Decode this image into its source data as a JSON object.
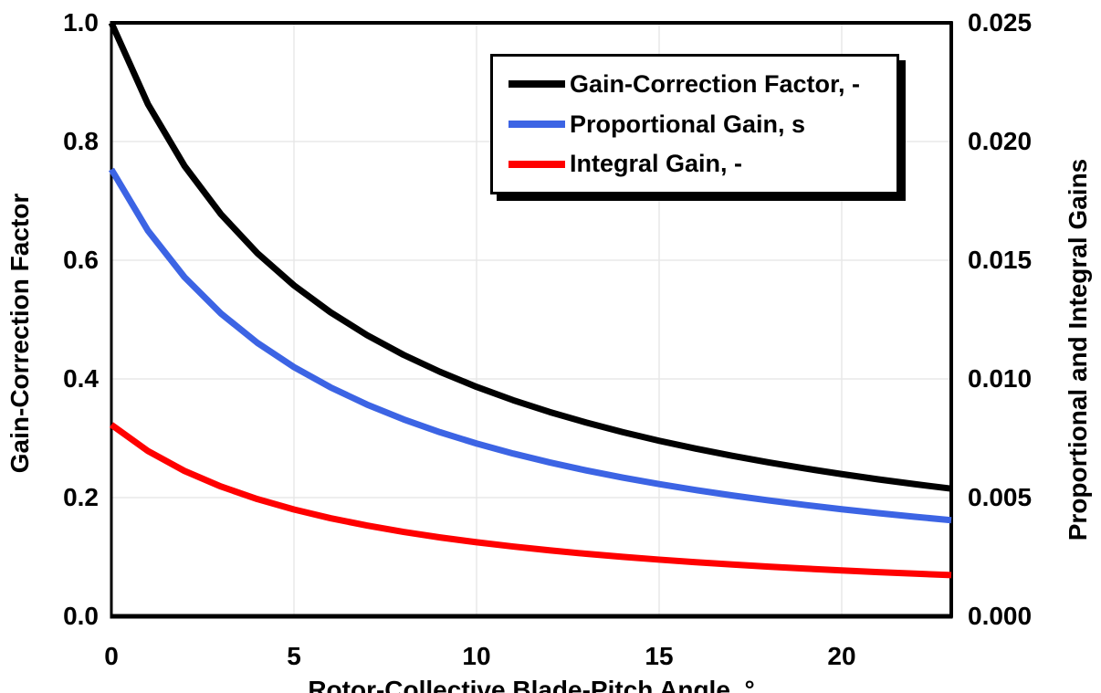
{
  "figure": {
    "xlabel": "Rotor-Collective Blade-Pitch Angle, °",
    "ylabel_left": "Gain-Correction Factor",
    "ylabel_right": "Proportional and Integral Gains"
  },
  "colors": {
    "gain_correction": "#000000",
    "proportional": "#3C64E4",
    "integral": "#FF0000",
    "gridline": "#E8E8E8",
    "frame": "#000000"
  },
  "chart_data": {
    "type": "line",
    "title": "",
    "xlabel": "Rotor-Collective Blade-Pitch Angle, °",
    "ylabel_left": "Gain-Correction Factor",
    "ylabel_right": "Proportional and Integral Gains",
    "xlim": [
      0,
      23
    ],
    "ylim_left": [
      0,
      1.0
    ],
    "ylim_right": [
      0,
      0.025
    ],
    "grid": true,
    "legend_position": "top-center-inside",
    "x": [
      0,
      1,
      2,
      3,
      4,
      5,
      6,
      7,
      8,
      9,
      10,
      11,
      12,
      13,
      14,
      15,
      16,
      17,
      18,
      19,
      20,
      21,
      22,
      23
    ],
    "series": [
      {
        "name": "Gain-Correction Factor, -",
        "color": "#000000",
        "axis": "left",
        "values": [
          1.0,
          0.8631,
          0.7591,
          0.6775,
          0.6117,
          0.5576,
          0.5123,
          0.4738,
          0.4406,
          0.4119,
          0.3866,
          0.3642,
          0.3443,
          0.3265,
          0.3104,
          0.2958,
          0.2826,
          0.2705,
          0.2593,
          0.2491,
          0.2396,
          0.2308,
          0.2227,
          0.2151
        ]
      },
      {
        "name": "Proportional Gain, s",
        "color": "#3C64E4",
        "axis": "right",
        "values": [
          0.018827,
          0.016249,
          0.014291,
          0.012755,
          0.011517,
          0.010498,
          0.009645,
          0.00892,
          0.008296,
          0.007754,
          0.007278,
          0.006858,
          0.006483,
          0.006147,
          0.005844,
          0.00557,
          0.00532,
          0.005092,
          0.004882,
          0.004689,
          0.004511,
          0.004346,
          0.004192,
          0.004049
        ]
      },
      {
        "name": "Integral Gain, -",
        "color": "#FF0000",
        "axis": "right",
        "values": [
          0.008069,
          0.006964,
          0.006125,
          0.005467,
          0.004936,
          0.0045,
          0.004133,
          0.003823,
          0.003555,
          0.003323,
          0.003119,
          0.002939,
          0.002778,
          0.002634,
          0.002504,
          0.002387,
          0.00228,
          0.002182,
          0.002092,
          0.00201,
          0.001933,
          0.001862,
          0.001797,
          0.001735
        ]
      }
    ],
    "x_ticks": {
      "values": [
        0,
        5,
        10,
        15,
        20
      ],
      "labels": [
        "0",
        "5",
        "10",
        "15",
        "20"
      ]
    },
    "y_ticks_left": {
      "values": [
        0,
        0.2,
        0.4,
        0.6,
        0.8,
        1.0
      ],
      "labels": [
        "0.0",
        "0.2",
        "0.4",
        "0.6",
        "0.8",
        "1.0"
      ]
    },
    "y_ticks_right": {
      "values": [
        0,
        0.005,
        0.01,
        0.015,
        0.02,
        0.025
      ],
      "labels": [
        "0.000",
        "0.005",
        "0.010",
        "0.015",
        "0.020",
        "0.025"
      ]
    }
  }
}
